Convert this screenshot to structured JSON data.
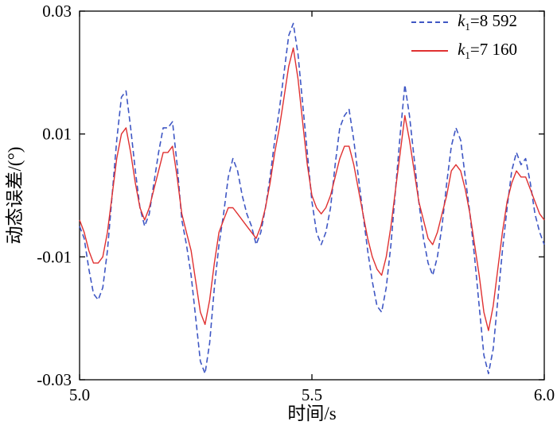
{
  "figure": {
    "background": "#ffffff",
    "frame_color": "#000000"
  },
  "axes": {
    "x": {
      "label": "时间/s",
      "min": 5.0,
      "max": 6.0,
      "ticks": [
        5.0,
        5.5,
        6.0
      ],
      "tick_labels": [
        "5.0",
        "5.5",
        "6.0"
      ]
    },
    "y": {
      "label": "动态误差/(°)",
      "min": -0.03,
      "max": 0.03,
      "ticks": [
        -0.03,
        -0.01,
        0.01,
        0.03
      ],
      "tick_labels": [
        "-0.03",
        "-0.01",
        "0.01",
        "0.03"
      ]
    }
  },
  "legend": {
    "items": [
      {
        "symbol": "k",
        "sub": "1",
        "rest": "=8 592",
        "color": "#3f57c4",
        "style": "dashed"
      },
      {
        "symbol": "k",
        "sub": "1",
        "rest": "=7 160",
        "color": "#e03131",
        "style": "solid"
      }
    ]
  },
  "chart_data": {
    "type": "line",
    "title": "",
    "xlabel": "时间/s",
    "ylabel": "动态误差/(°)",
    "xlim": [
      5.0,
      6.0
    ],
    "ylim": [
      -0.03,
      0.03
    ],
    "grid": false,
    "legend_position": "top-right",
    "series": [
      {
        "name": "k1=8 592",
        "color": "#3f57c4",
        "style": "dashed",
        "width": 1.6,
        "points": [
          [
            5.0,
            -0.005
          ],
          [
            5.01,
            -0.007
          ],
          [
            5.02,
            -0.012
          ],
          [
            5.03,
            -0.016
          ],
          [
            5.04,
            -0.017
          ],
          [
            5.05,
            -0.015
          ],
          [
            5.06,
            -0.009
          ],
          [
            5.07,
            0.0
          ],
          [
            5.08,
            0.009
          ],
          [
            5.09,
            0.016
          ],
          [
            5.1,
            0.017
          ],
          [
            5.11,
            0.011
          ],
          [
            5.12,
            0.004
          ],
          [
            5.13,
            -0.002
          ],
          [
            5.14,
            -0.005
          ],
          [
            5.15,
            -0.003
          ],
          [
            5.16,
            0.002
          ],
          [
            5.17,
            0.007
          ],
          [
            5.18,
            0.011
          ],
          [
            5.19,
            0.011
          ],
          [
            5.2,
            0.012
          ],
          [
            5.21,
            0.005
          ],
          [
            5.22,
            -0.004
          ],
          [
            5.23,
            -0.008
          ],
          [
            5.24,
            -0.013
          ],
          [
            5.25,
            -0.02
          ],
          [
            5.26,
            -0.027
          ],
          [
            5.27,
            -0.029
          ],
          [
            5.28,
            -0.024
          ],
          [
            5.29,
            -0.015
          ],
          [
            5.3,
            -0.008
          ],
          [
            5.31,
            -0.003
          ],
          [
            5.32,
            0.003
          ],
          [
            5.33,
            0.006
          ],
          [
            5.34,
            0.004
          ],
          [
            5.35,
            0.0
          ],
          [
            5.36,
            -0.003
          ],
          [
            5.37,
            -0.005
          ],
          [
            5.38,
            -0.008
          ],
          [
            5.39,
            -0.006
          ],
          [
            5.4,
            -0.002
          ],
          [
            5.41,
            0.003
          ],
          [
            5.42,
            0.009
          ],
          [
            5.43,
            0.014
          ],
          [
            5.44,
            0.02
          ],
          [
            5.45,
            0.026
          ],
          [
            5.46,
            0.028
          ],
          [
            5.47,
            0.023
          ],
          [
            5.48,
            0.015
          ],
          [
            5.49,
            0.007
          ],
          [
            5.5,
            -0.001
          ],
          [
            5.51,
            -0.006
          ],
          [
            5.52,
            -0.008
          ],
          [
            5.53,
            -0.006
          ],
          [
            5.54,
            -0.002
          ],
          [
            5.55,
            0.005
          ],
          [
            5.56,
            0.011
          ],
          [
            5.57,
            0.013
          ],
          [
            5.58,
            0.014
          ],
          [
            5.59,
            0.009
          ],
          [
            5.6,
            0.003
          ],
          [
            5.61,
            -0.003
          ],
          [
            5.62,
            -0.009
          ],
          [
            5.63,
            -0.014
          ],
          [
            5.64,
            -0.018
          ],
          [
            5.65,
            -0.019
          ],
          [
            5.66,
            -0.015
          ],
          [
            5.67,
            -0.008
          ],
          [
            5.68,
            0.001
          ],
          [
            5.69,
            0.01
          ],
          [
            5.7,
            0.018
          ],
          [
            5.71,
            0.013
          ],
          [
            5.72,
            0.006
          ],
          [
            5.73,
            -0.001
          ],
          [
            5.74,
            -0.007
          ],
          [
            5.75,
            -0.011
          ],
          [
            5.76,
            -0.013
          ],
          [
            5.77,
            -0.01
          ],
          [
            5.78,
            -0.005
          ],
          [
            5.79,
            0.002
          ],
          [
            5.8,
            0.008
          ],
          [
            5.81,
            0.011
          ],
          [
            5.82,
            0.009
          ],
          [
            5.83,
            0.003
          ],
          [
            5.84,
            -0.003
          ],
          [
            5.85,
            -0.01
          ],
          [
            5.86,
            -0.018
          ],
          [
            5.87,
            -0.026
          ],
          [
            5.88,
            -0.029
          ],
          [
            5.89,
            -0.025
          ],
          [
            5.9,
            -0.017
          ],
          [
            5.91,
            -0.009
          ],
          [
            5.92,
            -0.002
          ],
          [
            5.93,
            0.004
          ],
          [
            5.94,
            0.007
          ],
          [
            5.95,
            0.005
          ],
          [
            5.96,
            0.006
          ],
          [
            5.97,
            0.002
          ],
          [
            5.98,
            -0.003
          ],
          [
            5.99,
            -0.006
          ],
          [
            6.0,
            -0.008
          ]
        ]
      },
      {
        "name": "k1=7 160",
        "color": "#e03131",
        "style": "solid",
        "width": 1.4,
        "points": [
          [
            5.0,
            -0.004
          ],
          [
            5.01,
            -0.006
          ],
          [
            5.02,
            -0.009
          ],
          [
            5.03,
            -0.011
          ],
          [
            5.04,
            -0.011
          ],
          [
            5.05,
            -0.01
          ],
          [
            5.06,
            -0.006
          ],
          [
            5.07,
            0.0
          ],
          [
            5.08,
            0.006
          ],
          [
            5.09,
            0.01
          ],
          [
            5.1,
            0.011
          ],
          [
            5.11,
            0.007
          ],
          [
            5.12,
            0.002
          ],
          [
            5.13,
            -0.002
          ],
          [
            5.14,
            -0.004
          ],
          [
            5.15,
            -0.002
          ],
          [
            5.16,
            0.001
          ],
          [
            5.17,
            0.004
          ],
          [
            5.18,
            0.007
          ],
          [
            5.19,
            0.007
          ],
          [
            5.2,
            0.008
          ],
          [
            5.21,
            0.003
          ],
          [
            5.22,
            -0.003
          ],
          [
            5.23,
            -0.006
          ],
          [
            5.24,
            -0.009
          ],
          [
            5.25,
            -0.014
          ],
          [
            5.26,
            -0.019
          ],
          [
            5.27,
            -0.021
          ],
          [
            5.28,
            -0.017
          ],
          [
            5.29,
            -0.011
          ],
          [
            5.3,
            -0.006
          ],
          [
            5.31,
            -0.004
          ],
          [
            5.32,
            -0.002
          ],
          [
            5.33,
            -0.002
          ],
          [
            5.34,
            -0.003
          ],
          [
            5.35,
            -0.004
          ],
          [
            5.36,
            -0.005
          ],
          [
            5.37,
            -0.006
          ],
          [
            5.38,
            -0.007
          ],
          [
            5.39,
            -0.005
          ],
          [
            5.4,
            -0.002
          ],
          [
            5.41,
            0.002
          ],
          [
            5.42,
            0.007
          ],
          [
            5.43,
            0.011
          ],
          [
            5.44,
            0.016
          ],
          [
            5.45,
            0.021
          ],
          [
            5.46,
            0.024
          ],
          [
            5.47,
            0.019
          ],
          [
            5.48,
            0.012
          ],
          [
            5.49,
            0.005
          ],
          [
            5.5,
            0.0
          ],
          [
            5.51,
            -0.002
          ],
          [
            5.52,
            -0.003
          ],
          [
            5.53,
            -0.002
          ],
          [
            5.54,
            0.0
          ],
          [
            5.55,
            0.003
          ],
          [
            5.56,
            0.006
          ],
          [
            5.57,
            0.008
          ],
          [
            5.58,
            0.008
          ],
          [
            5.59,
            0.005
          ],
          [
            5.6,
            0.001
          ],
          [
            5.61,
            -0.003
          ],
          [
            5.62,
            -0.007
          ],
          [
            5.63,
            -0.01
          ],
          [
            5.64,
            -0.012
          ],
          [
            5.65,
            -0.013
          ],
          [
            5.66,
            -0.01
          ],
          [
            5.67,
            -0.005
          ],
          [
            5.68,
            0.001
          ],
          [
            5.69,
            0.007
          ],
          [
            5.7,
            0.013
          ],
          [
            5.71,
            0.009
          ],
          [
            5.72,
            0.004
          ],
          [
            5.73,
            -0.001
          ],
          [
            5.74,
            -0.004
          ],
          [
            5.75,
            -0.007
          ],
          [
            5.76,
            -0.008
          ],
          [
            5.77,
            -0.006
          ],
          [
            5.78,
            -0.003
          ],
          [
            5.79,
            0.0
          ],
          [
            5.8,
            0.004
          ],
          [
            5.81,
            0.005
          ],
          [
            5.82,
            0.004
          ],
          [
            5.83,
            0.001
          ],
          [
            5.84,
            -0.003
          ],
          [
            5.85,
            -0.008
          ],
          [
            5.86,
            -0.013
          ],
          [
            5.87,
            -0.019
          ],
          [
            5.88,
            -0.022
          ],
          [
            5.89,
            -0.018
          ],
          [
            5.9,
            -0.012
          ],
          [
            5.91,
            -0.006
          ],
          [
            5.92,
            -0.001
          ],
          [
            5.93,
            0.002
          ],
          [
            5.94,
            0.004
          ],
          [
            5.95,
            0.003
          ],
          [
            5.96,
            0.003
          ],
          [
            5.97,
            0.001
          ],
          [
            5.98,
            -0.001
          ],
          [
            5.99,
            -0.003
          ],
          [
            6.0,
            -0.004
          ]
        ]
      }
    ]
  }
}
